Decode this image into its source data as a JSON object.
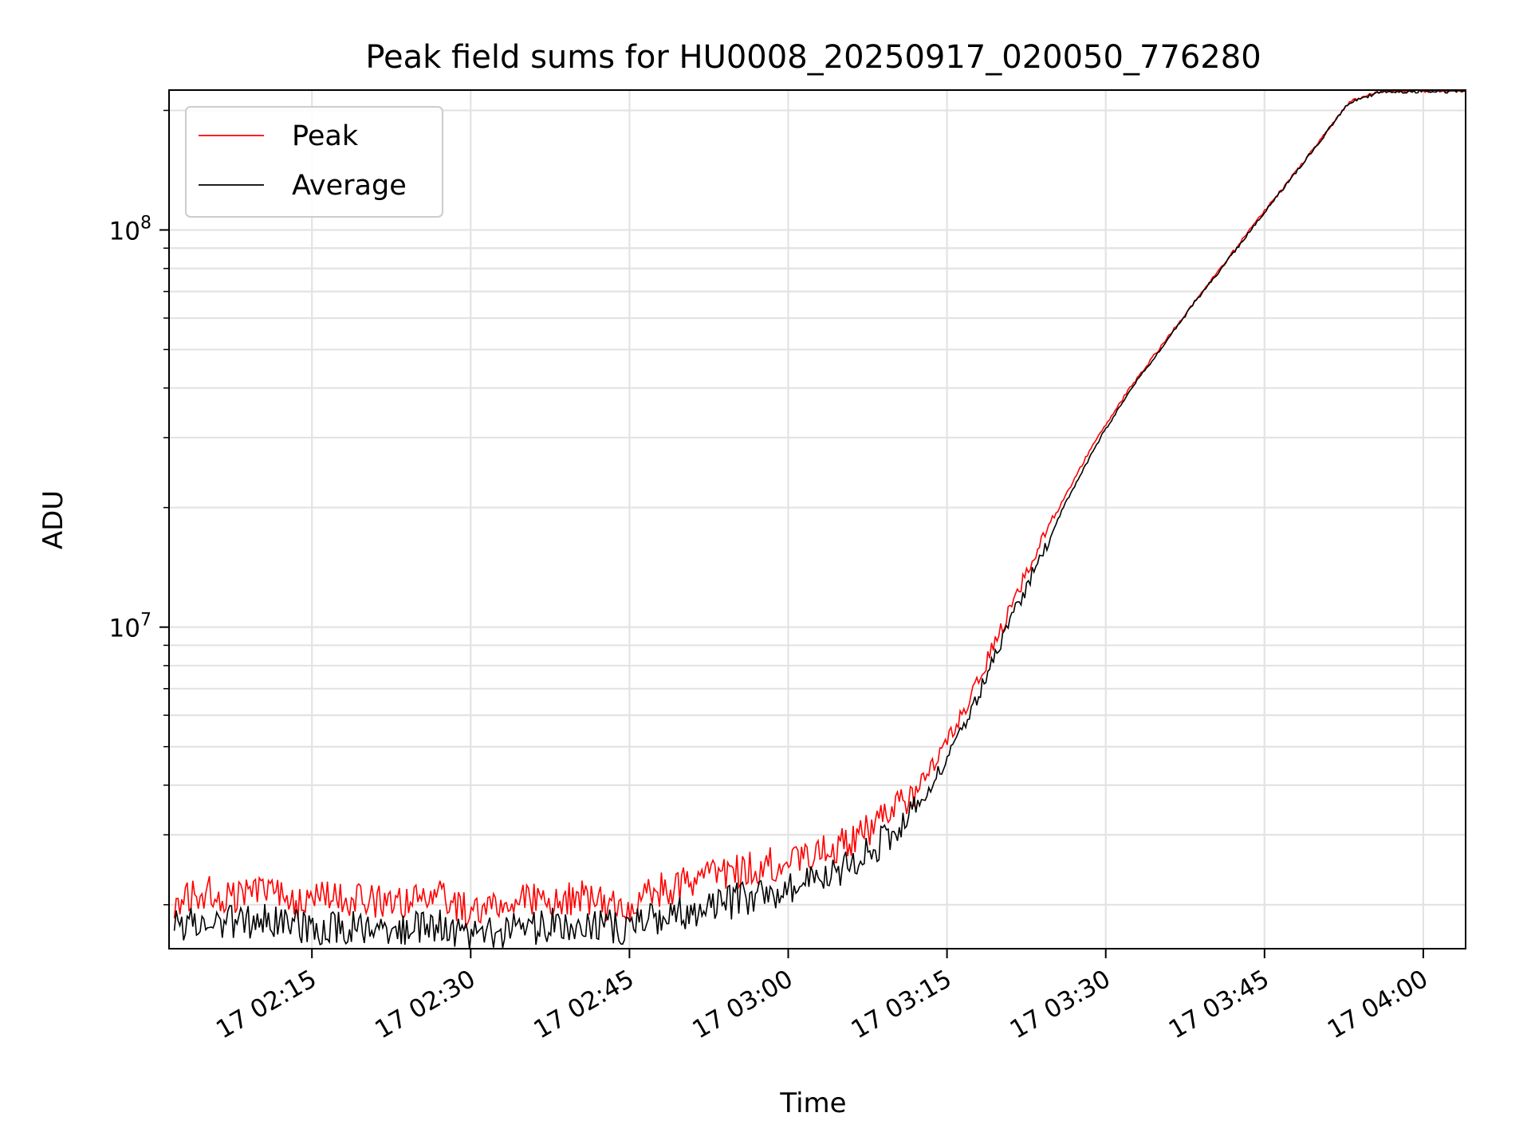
{
  "chart_data": {
    "type": "line",
    "title": "Peak field sums for HU0008_20250917_020050_776280",
    "xlabel": "Time",
    "ylabel": "ADU",
    "yscale": "log",
    "grid": true,
    "legend_position": "top-left",
    "x_unit": "minutes since 17 02:00",
    "xlim": [
      1.5,
      124
    ],
    "ylim": [
      1550000,
      225000000
    ],
    "x_ticks": [
      {
        "value": 15,
        "label": "17 02:15"
      },
      {
        "value": 30,
        "label": "17 02:30"
      },
      {
        "value": 45,
        "label": "17 02:45"
      },
      {
        "value": 60,
        "label": "17 03:00"
      },
      {
        "value": 75,
        "label": "17 03:15"
      },
      {
        "value": 90,
        "label": "17 03:30"
      },
      {
        "value": 105,
        "label": "17 03:45"
      },
      {
        "value": 120,
        "label": "17 04:00"
      }
    ],
    "y_ticks": [
      {
        "value": 10000000,
        "base": "10",
        "exp": "7"
      },
      {
        "value": 100000000,
        "base": "10",
        "exp": "8"
      }
    ],
    "x": [
      2,
      5,
      8,
      11,
      14,
      17,
      20,
      23,
      26,
      29,
      32,
      35,
      38,
      41,
      44,
      47,
      50,
      53,
      56,
      59,
      62,
      65,
      68,
      71,
      74,
      77,
      80,
      83,
      86,
      89,
      92,
      95,
      98,
      101,
      104,
      107,
      110,
      113,
      116,
      119,
      122,
      124
    ],
    "series": [
      {
        "name": "Peak",
        "color": "#ff0000",
        "values": [
          2050000,
          2150000,
          2100000,
          2250000,
          2000000,
          2100000,
          2050000,
          2000000,
          2150000,
          1950000,
          1950000,
          2050000,
          2050000,
          2100000,
          1950000,
          2150000,
          2250000,
          2350000,
          2450000,
          2550000,
          2650000,
          2850000,
          3150000,
          3650000,
          4600000,
          6400000,
          9800000,
          14500000,
          21000000,
          29500000,
          39000000,
          50000000,
          64000000,
          81000000,
          103000000,
          130000000,
          165000000,
          210000000,
          224000000,
          224000000,
          224000000,
          224000000
        ]
      },
      {
        "name": "Average",
        "color": "#000000",
        "values": [
          1780000,
          1810000,
          1790000,
          1840000,
          1760000,
          1740000,
          1750000,
          1730000,
          1780000,
          1720000,
          1700000,
          1740000,
          1780000,
          1780000,
          1750000,
          1850000,
          1900000,
          1980000,
          2080000,
          2150000,
          2250000,
          2450000,
          2750000,
          3250000,
          4200000,
          5900000,
          9000000,
          13500000,
          20000000,
          28500000,
          38500000,
          49500000,
          63500000,
          80500000,
          102500000,
          129500000,
          164500000,
          209000000,
          223000000,
          223000000,
          223000000,
          223000000
        ]
      }
    ]
  }
}
